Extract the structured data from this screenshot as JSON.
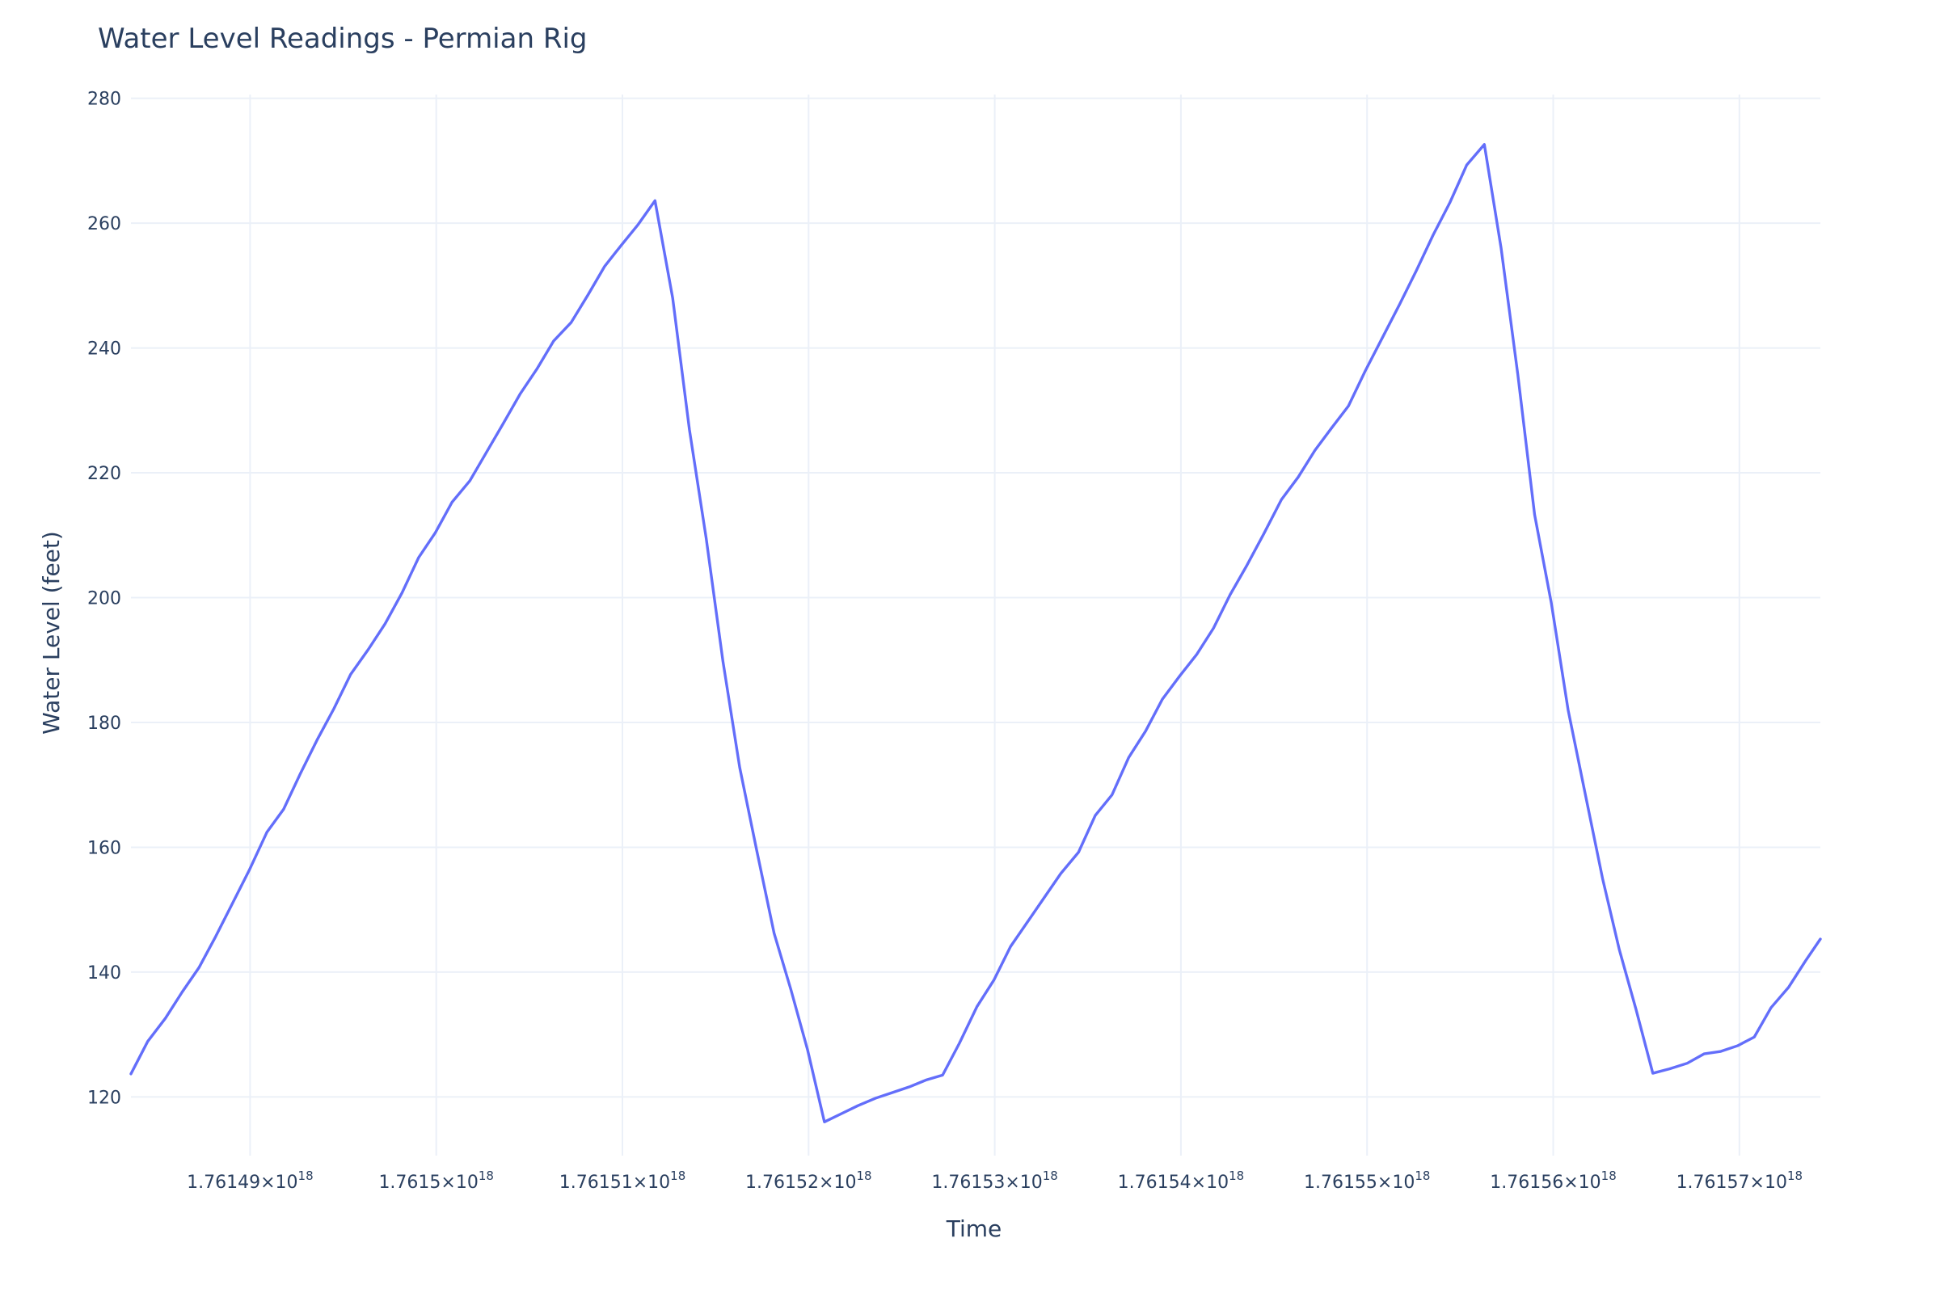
{
  "chart_data": {
    "type": "line",
    "title": "Water Level Readings - Permian Rig",
    "xlabel": "Time",
    "ylabel": "Water Level (feet)",
    "grid": true,
    "legend": "none",
    "line_color": "#636efa",
    "background": "#ffffff",
    "grid_color": "#ebf0f8",
    "text_color": "#2a3f5f",
    "x_unit": "1.7615e18",
    "ylim": [
      110.6,
      280.6
    ],
    "y_ticks": [
      120,
      140,
      160,
      180,
      200,
      220,
      240,
      260,
      280
    ],
    "xlim": [
      -0.1128,
      0.0687
    ],
    "x_ticks": [
      {
        "value": -0.1,
        "mantissa": "1.76149",
        "exponent": "18"
      },
      {
        "value": -0.08,
        "mantissa": "1.7615",
        "exponent": "18"
      },
      {
        "value": -0.06,
        "mantissa": "1.76151",
        "exponent": "18"
      },
      {
        "value": -0.04,
        "mantissa": "1.76152",
        "exponent": "18"
      },
      {
        "value": -0.02,
        "mantissa": "1.76153",
        "exponent": "18"
      },
      {
        "value": 0.0,
        "mantissa": "1.76154",
        "exponent": "18"
      },
      {
        "value": 0.02,
        "mantissa": "1.76155",
        "exponent": "18"
      },
      {
        "value": 0.04,
        "mantissa": "1.76156",
        "exponent": "18"
      },
      {
        "value": 0.06,
        "mantissa": "1.76157",
        "exponent": "18"
      }
    ],
    "x": [
      -0.1128,
      -0.111,
      -0.1091,
      -0.1073,
      -0.1055,
      -0.1037,
      -0.1019,
      -0.1001,
      -0.0982,
      -0.0964,
      -0.0946,
      -0.0928,
      -0.091,
      -0.0892,
      -0.0873,
      -0.0855,
      -0.0837,
      -0.0819,
      -0.0801,
      -0.0783,
      -0.0764,
      -0.0746,
      -0.0728,
      -0.071,
      -0.0692,
      -0.0674,
      -0.0655,
      -0.0637,
      -0.0619,
      -0.0601,
      -0.0583,
      -0.0565,
      -0.0546,
      -0.0528,
      -0.051,
      -0.0492,
      -0.0474,
      -0.0456,
      -0.0437,
      -0.0419,
      -0.0401,
      -0.0383,
      -0.0365,
      -0.0347,
      -0.0328,
      -0.031,
      -0.0292,
      -0.0274,
      -0.0256,
      -0.0238,
      -0.0219,
      -0.0201,
      -0.0183,
      -0.0165,
      -0.0147,
      -0.0129,
      -0.011,
      -0.0092,
      -0.0074,
      -0.0056,
      -0.0038,
      -0.002,
      -0.0001,
      0.0017,
      0.0035,
      0.0053,
      0.0071,
      0.0089,
      0.0108,
      0.0126,
      0.0144,
      0.0162,
      0.018,
      0.0198,
      0.0217,
      0.0235,
      0.0253,
      0.0271,
      0.0289,
      0.0307,
      0.0326,
      0.0344,
      0.0362,
      0.038,
      0.0398,
      0.0416,
      0.0435,
      0.0453,
      0.0471,
      0.0489,
      0.0507,
      0.0525,
      0.0544,
      0.0562,
      0.058,
      0.0598,
      0.0616,
      0.0634,
      0.0653,
      0.0671,
      0.0687
    ],
    "y": [
      123.7,
      128.9,
      132.6,
      136.8,
      140.7,
      145.7,
      151.0,
      156.3,
      162.4,
      166.1,
      171.8,
      177.2,
      182.2,
      187.7,
      191.7,
      195.8,
      200.7,
      206.4,
      210.4,
      215.3,
      218.7,
      223.3,
      227.9,
      232.6,
      236.6,
      241.1,
      244.1,
      248.5,
      253.1,
      256.5,
      259.8,
      263.6,
      248.0,
      226.9,
      209.5,
      189.8,
      172.8,
      159.7,
      146.2,
      137.2,
      127.5,
      116.0,
      117.3,
      118.6,
      119.8,
      120.7,
      121.6,
      122.7,
      123.5,
      128.6,
      134.5,
      138.7,
      144.1,
      148.0,
      151.9,
      155.8,
      159.2,
      165.1,
      168.4,
      174.4,
      178.6,
      183.7,
      187.5,
      190.9,
      195.1,
      200.5,
      205.2,
      210.2,
      215.7,
      219.3,
      223.6,
      227.2,
      230.7,
      236.3,
      241.8,
      247.0,
      252.4,
      258.1,
      263.3,
      269.3,
      272.6,
      256.0,
      235.7,
      213.3,
      199.1,
      182.0,
      168.1,
      155.0,
      143.6,
      134.0,
      123.8,
      124.5,
      125.4,
      126.9,
      127.3,
      128.2,
      129.6,
      134.3,
      137.6,
      141.8,
      145.3
    ]
  }
}
